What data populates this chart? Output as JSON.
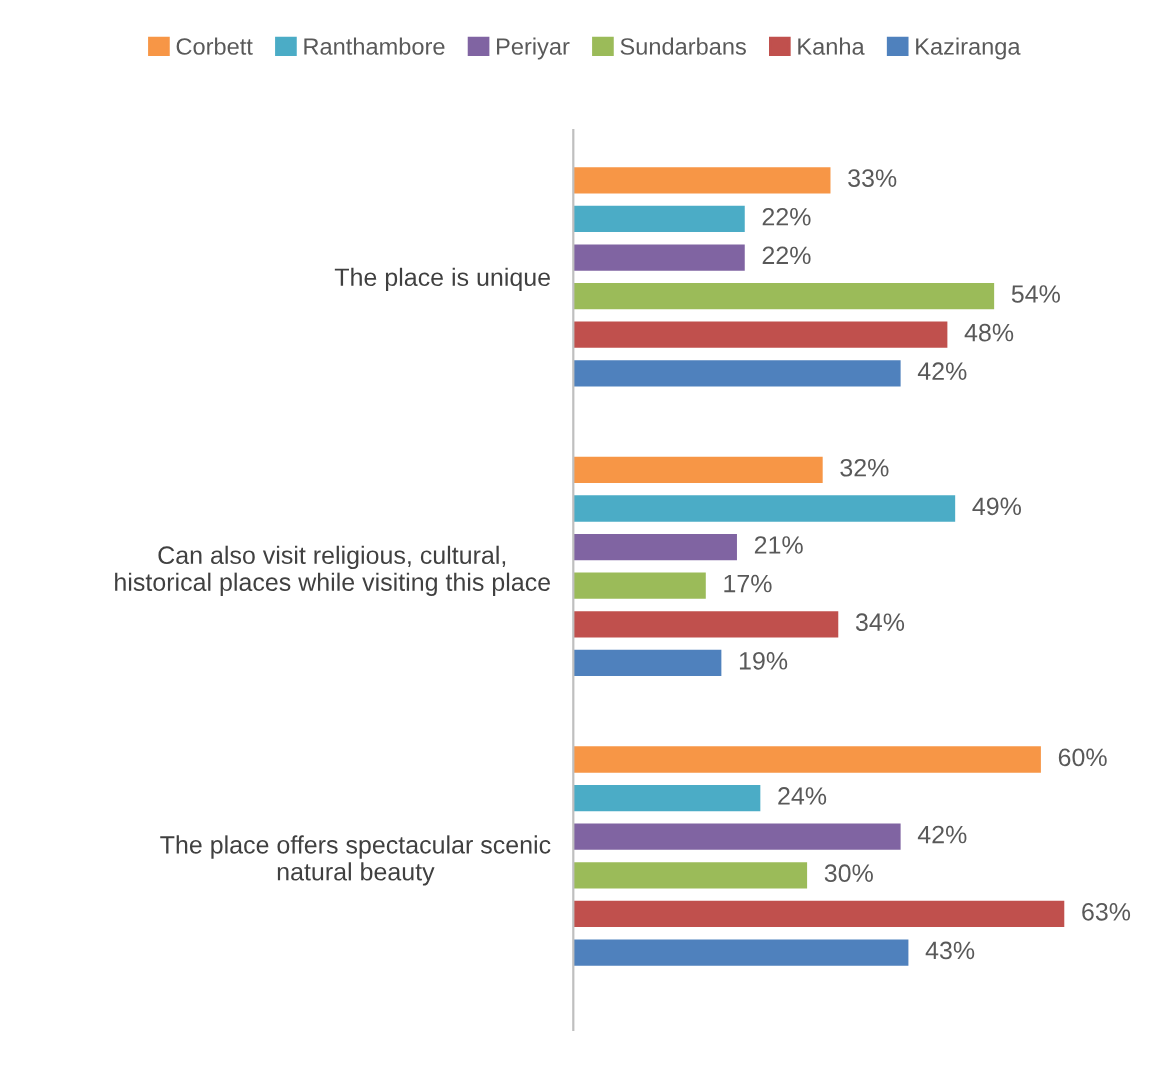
{
  "chart_data": {
    "type": "bar",
    "orientation": "horizontal",
    "categories": [
      "The place is unique",
      "Can also visit religious, cultural,\nhistorical places while visiting this place",
      "The place offers spectacular scenic\nnatural beauty"
    ],
    "series": [
      {
        "name": "Corbett",
        "color": "#f79646",
        "values": [
          33,
          32,
          60
        ],
        "value_labels": [
          "33%",
          "32%",
          "60%"
        ]
      },
      {
        "name": "Ranthambore",
        "color": "#4bacc6",
        "values": [
          22,
          49,
          24
        ],
        "value_labels": [
          "22%",
          "49%",
          "24%"
        ]
      },
      {
        "name": "Periyar",
        "color": "#8064a2",
        "values": [
          22,
          21,
          42
        ],
        "value_labels": [
          "22%",
          "21%",
          "42%"
        ]
      },
      {
        "name": "Sundarbans",
        "color": "#9bbb59",
        "values": [
          54,
          17,
          30
        ],
        "value_labels": [
          "54%",
          "17%",
          "30%"
        ]
      },
      {
        "name": "Kanha",
        "color": "#c0504d",
        "values": [
          48,
          34,
          63
        ],
        "value_labels": [
          "48%",
          "34%",
          "63%"
        ]
      },
      {
        "name": "Kaziranga",
        "color": "#4f81bd",
        "values": [
          42,
          19,
          43
        ],
        "value_labels": [
          "42%",
          "19%",
          "43%"
        ]
      }
    ],
    "legend": "top"
  }
}
